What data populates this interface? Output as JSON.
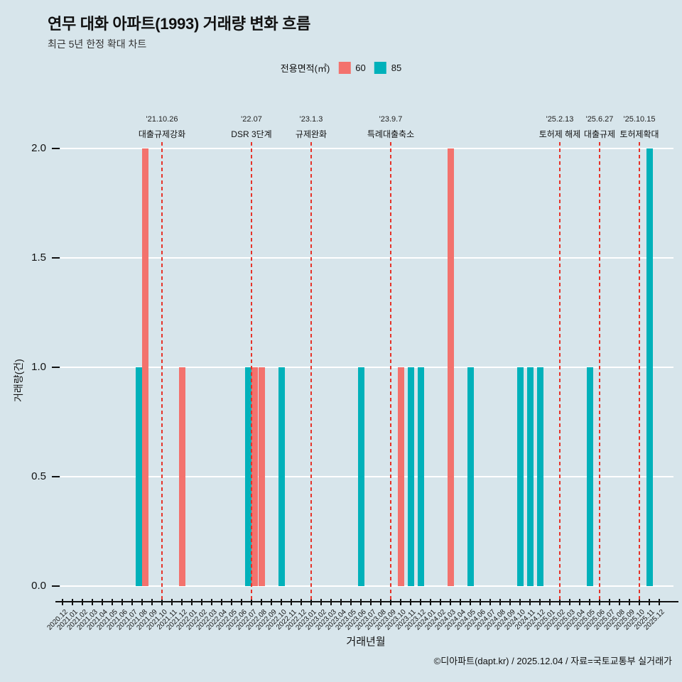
{
  "page": {
    "title": "연무 대화 아파트(1993) 거래량 변화 흐름",
    "subtitle": "최근 5년 한정 확대 차트",
    "footer": "©디아파트(dapt.kr) / 2025.12.04 / 자료=국토교통부 실거래가"
  },
  "legend": {
    "title": "전용면적(㎡)",
    "items": [
      {
        "label": "60",
        "color": "#f3726d"
      },
      {
        "label": "85",
        "color": "#00b1ba"
      }
    ]
  },
  "chart_data": {
    "type": "bar",
    "title": "연무 대화 아파트(1993) 거래량 변화 흐름",
    "subtitle": "최근 5년 한정 확대 차트",
    "xlabel": "거래년월",
    "ylabel": "거래량(건)",
    "ylim": [
      0,
      2
    ],
    "yticks": [
      0,
      0.5,
      1,
      1.5,
      2
    ],
    "grid": true,
    "legend_position": "top-center",
    "background_color": "#d7e5eb",
    "gridline_color": "#ffffff",
    "event_line_color": "#e63329",
    "categories": [
      "2020.12",
      "2021.01",
      "2021.02",
      "2021.03",
      "2021.04",
      "2021.05",
      "2021.06",
      "2021.07",
      "2021.08",
      "2021.09",
      "2021.10",
      "2021.11",
      "2021.12",
      "2022.01",
      "2022.02",
      "2022.03",
      "2022.04",
      "2022.05",
      "2022.06",
      "2022.07",
      "2022.08",
      "2022.09",
      "2022.10",
      "2022.11",
      "2022.12",
      "2023.01",
      "2023.02",
      "2023.03",
      "2023.04",
      "2023.05",
      "2023.06",
      "2023.07",
      "2023.08",
      "2023.09",
      "2023.10",
      "2023.11",
      "2023.12",
      "2024.01",
      "2024.02",
      "2024.03",
      "2024.04",
      "2024.05",
      "2024.06",
      "2024.07",
      "2024.08",
      "2024.09",
      "2024.10",
      "2024.11",
      "2024.12",
      "2025.01",
      "2025.02",
      "2025.03",
      "2025.04",
      "2025.05",
      "2025.06",
      "2025.07",
      "2025.08",
      "2025.09",
      "2025.10",
      "2025.11",
      "2025.12"
    ],
    "series": [
      {
        "name": "60",
        "color": "#f3726d",
        "data": [
          {
            "x": "2021.08",
            "y": 2
          },
          {
            "x": "2021.12",
            "y": 1
          },
          {
            "x": "2022.07",
            "y": 1
          },
          {
            "x": "2022.08",
            "y": 1
          },
          {
            "x": "2023.10",
            "y": 1
          },
          {
            "x": "2024.03",
            "y": 2
          }
        ]
      },
      {
        "name": "85",
        "color": "#00b1ba",
        "data": [
          {
            "x": "2021.08",
            "y": 1
          },
          {
            "x": "2022.07",
            "y": 1
          },
          {
            "x": "2022.10",
            "y": 1
          },
          {
            "x": "2023.06",
            "y": 1
          },
          {
            "x": "2023.11",
            "y": 1
          },
          {
            "x": "2023.12",
            "y": 1
          },
          {
            "x": "2024.05",
            "y": 1
          },
          {
            "x": "2024.10",
            "y": 1
          },
          {
            "x": "2024.11",
            "y": 1
          },
          {
            "x": "2024.12",
            "y": 1
          },
          {
            "x": "2025.05",
            "y": 1
          },
          {
            "x": "2025.11",
            "y": 2
          }
        ]
      }
    ],
    "events": [
      {
        "x": "2021.10",
        "date": "'21.10.26",
        "label": "대출규제강화"
      },
      {
        "x": "2022.07",
        "date": "'22.07",
        "label": "DSR 3단계"
      },
      {
        "x": "2023.01",
        "date": "'23.1.3",
        "label": "규제완화"
      },
      {
        "x": "2023.09",
        "date": "'23.9.7",
        "label": "특례대출축소"
      },
      {
        "x": "2025.02",
        "date": "'25.2.13",
        "label": "토허제 해제"
      },
      {
        "x": "2025.06",
        "date": "'25.6.27",
        "label": "대출규제"
      },
      {
        "x": "2025.10",
        "date": "'25.10.15",
        "label": "토허제확대"
      }
    ]
  }
}
